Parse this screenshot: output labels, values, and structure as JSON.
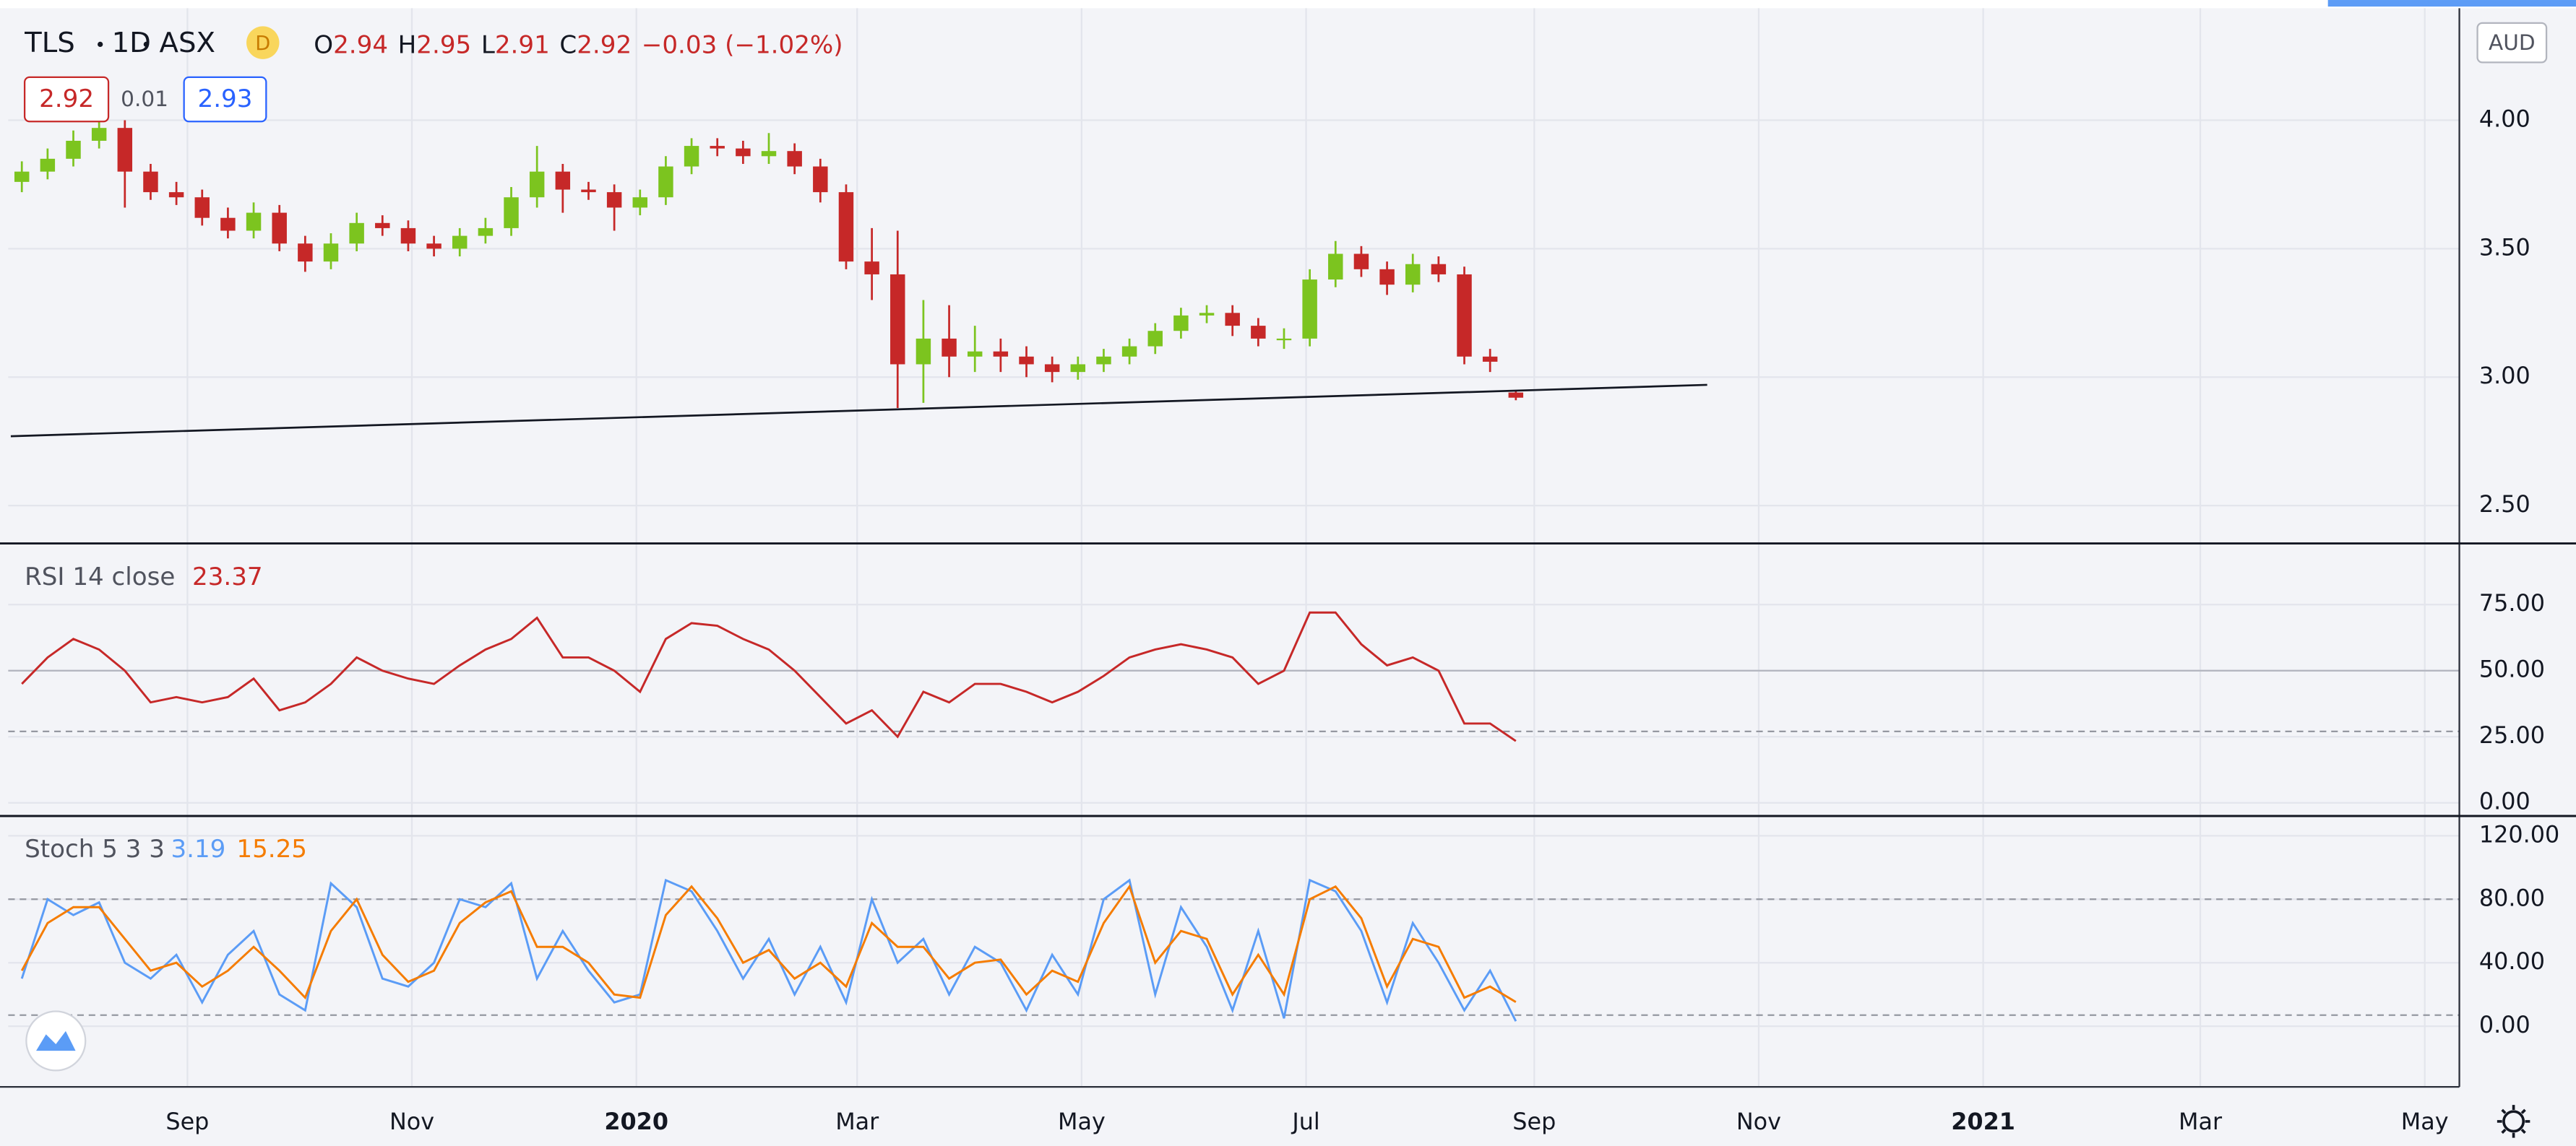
{
  "header": {
    "symbol": "TLS",
    "interval": "1D",
    "exchange": "ASX",
    "badge": "D",
    "ohlc_labels": [
      "O",
      "H",
      "L",
      "C"
    ],
    "change": "−0.03 (−1.02%)",
    "bid": "2.92",
    "spread": "0.01",
    "ask": "2.93",
    "currency": "AUD"
  },
  "chart_data": [
    {
      "type": "candlestick",
      "up_color": "#7cc41f",
      "down_color": "#c62828",
      "x": [
        -14,
        -7,
        0,
        7,
        14,
        21,
        28,
        35,
        42,
        49,
        56,
        63,
        70,
        77,
        84,
        91,
        98,
        105,
        112,
        119,
        126,
        133,
        140,
        147,
        154,
        161,
        168,
        175,
        182,
        189,
        196,
        203,
        210,
        217,
        224,
        231,
        238,
        245,
        252,
        259,
        266,
        273,
        280,
        287,
        294,
        301,
        308,
        315,
        322,
        329,
        336,
        343,
        350,
        357,
        364,
        371,
        378,
        385,
        392
      ],
      "open": [
        3.76,
        3.8,
        3.85,
        3.92,
        3.97,
        3.8,
        3.72,
        3.7,
        3.62,
        3.57,
        3.64,
        3.52,
        3.45,
        3.52,
        3.6,
        3.58,
        3.52,
        3.5,
        3.55,
        3.58,
        3.7,
        3.8,
        3.73,
        3.72,
        3.66,
        3.7,
        3.82,
        3.9,
        3.89,
        3.86,
        3.88,
        3.82,
        3.72,
        3.45,
        3.4,
        3.05,
        3.15,
        3.08,
        3.1,
        3.08,
        3.05,
        3.02,
        3.05,
        3.08,
        3.12,
        3.18,
        3.24,
        3.25,
        3.2,
        3.15,
        3.15,
        3.38,
        3.48,
        3.42,
        3.36,
        3.44,
        3.4,
        3.08,
        2.94
      ],
      "high": [
        3.84,
        3.89,
        3.96,
        4.01,
        4.0,
        3.83,
        3.76,
        3.73,
        3.66,
        3.68,
        3.67,
        3.55,
        3.56,
        3.64,
        3.63,
        3.61,
        3.55,
        3.58,
        3.62,
        3.74,
        3.9,
        3.83,
        3.76,
        3.75,
        3.73,
        3.86,
        3.93,
        3.93,
        3.92,
        3.95,
        3.91,
        3.85,
        3.75,
        3.58,
        3.57,
        3.3,
        3.28,
        3.2,
        3.15,
        3.12,
        3.08,
        3.08,
        3.11,
        3.15,
        3.21,
        3.27,
        3.28,
        3.28,
        3.23,
        3.19,
        3.42,
        3.53,
        3.51,
        3.45,
        3.48,
        3.47,
        3.43,
        3.11,
        2.95
      ],
      "low": [
        3.72,
        3.77,
        3.82,
        3.89,
        3.66,
        3.69,
        3.67,
        3.59,
        3.54,
        3.54,
        3.49,
        3.41,
        3.42,
        3.49,
        3.55,
        3.49,
        3.47,
        3.47,
        3.52,
        3.55,
        3.66,
        3.64,
        3.69,
        3.57,
        3.63,
        3.67,
        3.79,
        3.86,
        3.83,
        3.83,
        3.79,
        3.68,
        3.42,
        3.3,
        2.88,
        2.9,
        3.0,
        3.02,
        3.02,
        3.0,
        2.98,
        2.99,
        3.02,
        3.05,
        3.09,
        3.15,
        3.21,
        3.16,
        3.12,
        3.11,
        3.12,
        3.35,
        3.39,
        3.32,
        3.33,
        3.37,
        3.05,
        3.02,
        2.91
      ],
      "close": [
        3.8,
        3.85,
        3.92,
        3.97,
        3.8,
        3.72,
        3.7,
        3.62,
        3.57,
        3.64,
        3.52,
        3.45,
        3.52,
        3.6,
        3.58,
        3.52,
        3.5,
        3.55,
        3.58,
        3.7,
        3.8,
        3.73,
        3.72,
        3.66,
        3.7,
        3.82,
        3.9,
        3.89,
        3.86,
        3.88,
        3.82,
        3.72,
        3.45,
        3.4,
        3.05,
        3.15,
        3.08,
        3.1,
        3.08,
        3.05,
        3.02,
        3.05,
        3.08,
        3.12,
        3.18,
        3.24,
        3.25,
        3.2,
        3.15,
        3.15,
        3.38,
        3.48,
        3.42,
        3.36,
        3.44,
        3.4,
        3.08,
        3.06,
        2.92
      ],
      "trendline": {
        "x": [
          -17,
          444
        ],
        "y": [
          2.77,
          2.97
        ]
      },
      "xlim": [
        -17.7,
        648.4
      ],
      "ylim": [
        2.359,
        4.436
      ],
      "yticks": [
        {
          "value": 4.0,
          "label": "4.00"
        },
        {
          "value": 3.5,
          "label": "3.50"
        },
        {
          "value": 3.0,
          "label": "3.00"
        },
        {
          "value": 2.5,
          "label": "2.50"
        }
      ],
      "grid": true
    },
    {
      "type": "line",
      "title": "RSI 14 close",
      "x": [
        -14,
        -7,
        0,
        7,
        14,
        21,
        28,
        35,
        42,
        49,
        56,
        63,
        70,
        77,
        84,
        91,
        98,
        105,
        112,
        119,
        126,
        133,
        140,
        147,
        154,
        161,
        168,
        175,
        182,
        189,
        196,
        203,
        210,
        217,
        224,
        231,
        238,
        245,
        252,
        259,
        266,
        273,
        280,
        287,
        294,
        301,
        308,
        315,
        322,
        329,
        336,
        343,
        350,
        357,
        364,
        371,
        378,
        385,
        392
      ],
      "series": [
        {
          "color": "#c62828",
          "values": [
            45,
            55,
            62,
            58,
            50,
            38,
            40,
            38,
            40,
            47,
            35,
            38,
            45,
            55,
            50,
            47,
            45,
            52,
            58,
            62,
            70,
            55,
            55,
            50,
            42,
            62,
            68,
            67,
            62,
            58,
            50,
            40,
            30,
            35,
            25,
            42,
            38,
            45,
            45,
            42,
            38,
            42,
            48,
            55,
            58,
            60,
            58,
            55,
            45,
            50,
            72,
            72,
            60,
            52,
            55,
            50,
            30,
            30,
            23.37
          ]
        }
      ],
      "levels": [
        {
          "value": 50,
          "style": "solid"
        },
        {
          "value": 27,
          "style": "dashed"
        }
      ],
      "xlim": [
        -17.7,
        648.4
      ],
      "ylim": [
        -3.75,
        96.9
      ],
      "yticks": [
        {
          "value": 75,
          "label": "75.00"
        },
        {
          "value": 50,
          "label": "50.00"
        },
        {
          "value": 25,
          "label": "25.00"
        },
        {
          "value": 0,
          "label": "0.00"
        }
      ],
      "grid": true
    },
    {
      "type": "line",
      "title": "Stoch 5 3 3",
      "x": [
        -14,
        -7,
        0,
        7,
        14,
        21,
        28,
        35,
        42,
        49,
        56,
        63,
        70,
        77,
        84,
        91,
        98,
        105,
        112,
        119,
        126,
        133,
        140,
        147,
        154,
        161,
        168,
        175,
        182,
        189,
        196,
        203,
        210,
        217,
        224,
        231,
        238,
        245,
        252,
        259,
        266,
        273,
        280,
        287,
        294,
        301,
        308,
        315,
        322,
        329,
        336,
        343,
        350,
        357,
        364,
        371,
        378,
        385,
        392
      ],
      "series": [
        {
          "color": "#5b9cf6",
          "values": [
            30,
            80,
            70,
            78,
            40,
            30,
            45,
            15,
            45,
            60,
            20,
            10,
            90,
            75,
            30,
            25,
            40,
            80,
            75,
            90,
            30,
            60,
            35,
            15,
            20,
            92,
            85,
            60,
            30,
            55,
            20,
            50,
            15,
            80,
            40,
            55,
            20,
            50,
            40,
            10,
            45,
            20,
            80,
            92,
            20,
            75,
            50,
            10,
            60,
            5,
            92,
            85,
            60,
            15,
            65,
            40,
            10,
            35,
            3.19
          ]
        },
        {
          "color": "#f57c00",
          "values": [
            35,
            65,
            75,
            75,
            55,
            35,
            40,
            25,
            35,
            50,
            35,
            18,
            60,
            80,
            45,
            28,
            35,
            65,
            78,
            85,
            50,
            50,
            40,
            20,
            18,
            70,
            88,
            68,
            40,
            48,
            30,
            40,
            25,
            65,
            50,
            50,
            30,
            40,
            42,
            20,
            35,
            28,
            65,
            88,
            40,
            60,
            55,
            20,
            45,
            20,
            80,
            88,
            68,
            25,
            55,
            50,
            18,
            25,
            15.25
          ]
        }
      ],
      "levels": [
        {
          "value": 80,
          "style": "dashed"
        },
        {
          "value": 7,
          "style": "dashed"
        }
      ],
      "xlim": [
        -17.7,
        648.4
      ],
      "ylim": [
        -38.2,
        131.4
      ],
      "yticks": [
        {
          "value": 120,
          "label": "120.00"
        },
        {
          "value": 80,
          "label": "80.00"
        },
        {
          "value": 40,
          "label": "40.00"
        },
        {
          "value": 0,
          "label": "0.00"
        }
      ],
      "grid": true,
      "xticks": [
        {
          "value": 31,
          "label": "Sep"
        },
        {
          "value": 92,
          "label": "Nov"
        },
        {
          "value": 153,
          "label": "2020"
        },
        {
          "value": 213,
          "label": "Mar"
        },
        {
          "value": 274,
          "label": "May"
        },
        {
          "value": 335,
          "label": "Jul"
        },
        {
          "value": 397,
          "label": "Sep"
        },
        {
          "value": 458,
          "label": "Nov"
        },
        {
          "value": 519,
          "label": "2021"
        },
        {
          "value": 578,
          "label": "Mar"
        },
        {
          "value": 639,
          "label": "May"
        }
      ]
    }
  ]
}
